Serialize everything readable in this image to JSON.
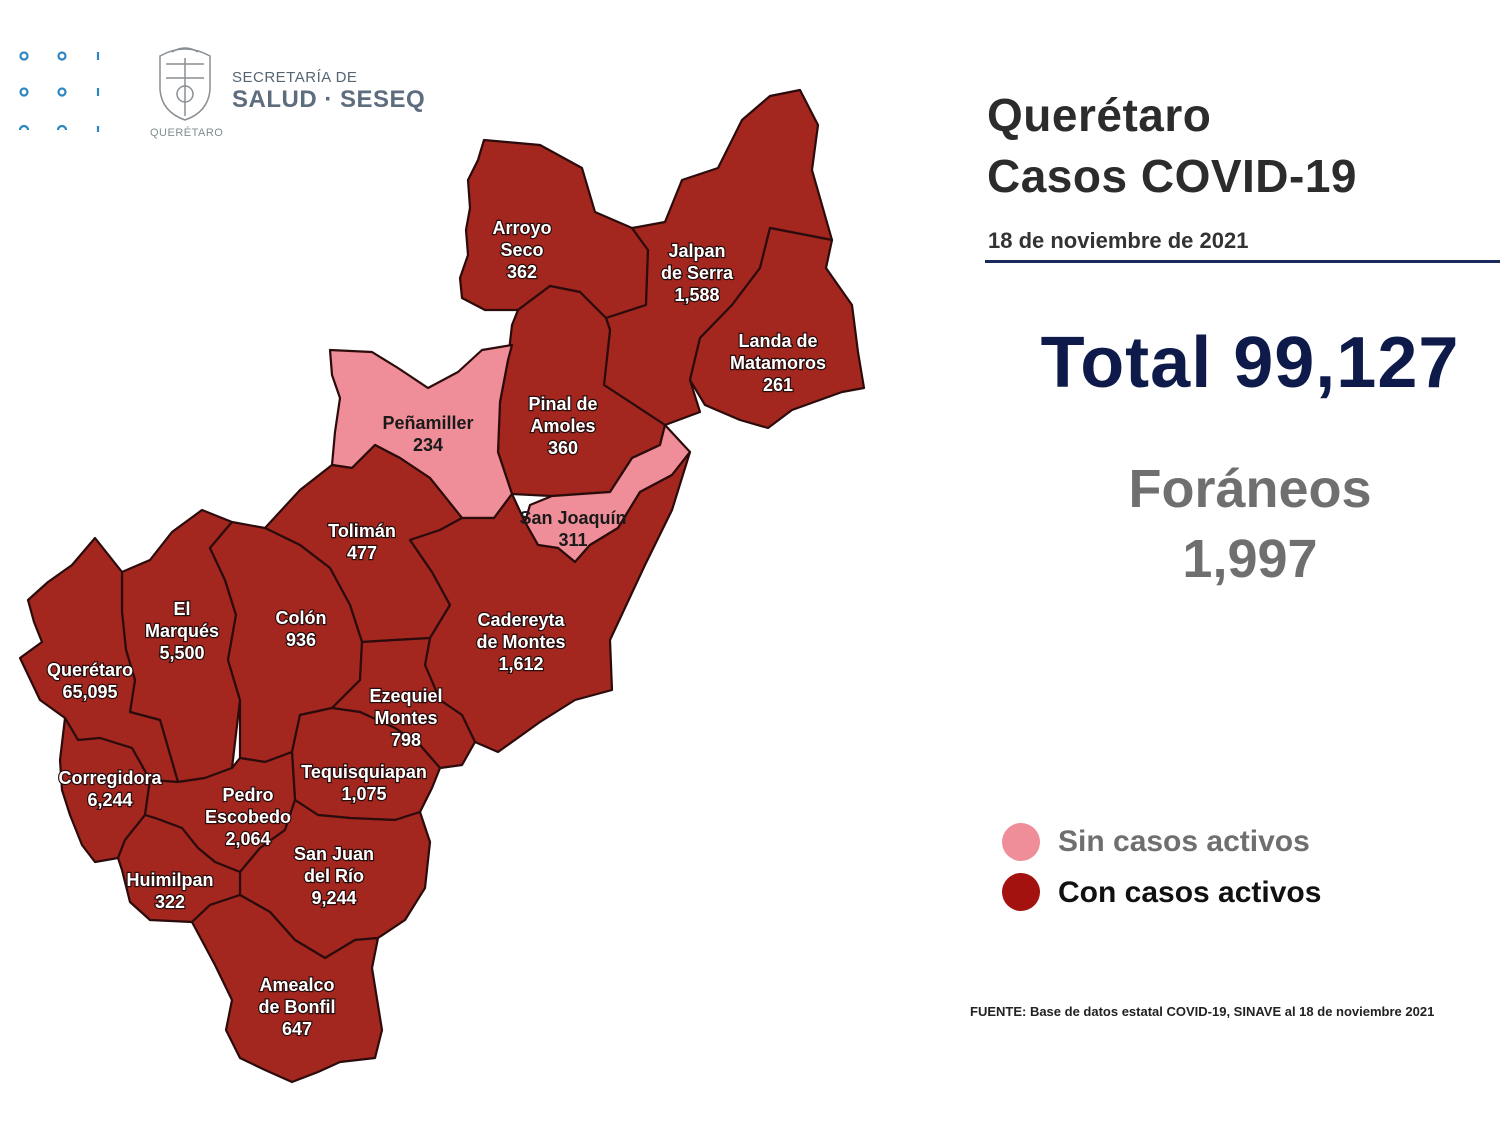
{
  "header": {
    "logo_line1": "SECRETARÍA DE",
    "logo_line2": "SALUD · SESEQ",
    "seal_caption": "QUERÉTARO"
  },
  "info": {
    "title_line1": "Querétaro",
    "title_line2": "Casos COVID-19",
    "date": "18 de noviembre de 2021",
    "total": "Total 99,127",
    "foraneos_label": "Foráneos",
    "foraneos_value": "1,997"
  },
  "legend": [
    {
      "label": "Sin casos activos",
      "color": "#ef8d98",
      "text_color": "#6f6f6f"
    },
    {
      "label": "Con casos activos",
      "color": "#a3120f",
      "text_color": "#111111"
    }
  ],
  "colors": {
    "active": "#a3271f",
    "no_active": "#ef8d98",
    "border": "#2b0b0b",
    "title_navy": "#0d1a4a"
  },
  "source": "FUENTE: Base de datos estatal COVID-19, SINAVE al 18 de noviembre 2021",
  "municipalities": [
    {
      "id": "arroyo-seco",
      "lines": [
        "Arroyo",
        "Seco",
        "362"
      ],
      "status": "active"
    },
    {
      "id": "jalpan-de-serra",
      "lines": [
        "Jalpan",
        "de Serra",
        "1,588"
      ],
      "status": "active"
    },
    {
      "id": "landa-de-matamoros",
      "lines": [
        "Landa de",
        "Matamoros",
        "261"
      ],
      "status": "active"
    },
    {
      "id": "pinal-de-amoles",
      "lines": [
        "Pinal de",
        "Amoles",
        "360"
      ],
      "status": "active"
    },
    {
      "id": "penamiller",
      "lines": [
        "Peñamiller",
        "234"
      ],
      "status": "none"
    },
    {
      "id": "san-joaquin",
      "lines": [
        "San Joaquín",
        "311"
      ],
      "status": "none"
    },
    {
      "id": "toliman",
      "lines": [
        "Tolimán",
        "477"
      ],
      "status": "active"
    },
    {
      "id": "cadereyta-de-montes",
      "lines": [
        "Cadereyta",
        "de Montes",
        "1,612"
      ],
      "status": "active"
    },
    {
      "id": "el-marques",
      "lines": [
        "El",
        "Marqués",
        "5,500"
      ],
      "status": "active"
    },
    {
      "id": "colon",
      "lines": [
        "Colón",
        "936"
      ],
      "status": "active"
    },
    {
      "id": "queretaro",
      "lines": [
        "Querétaro",
        "65,095"
      ],
      "status": "active"
    },
    {
      "id": "ezequiel-montes",
      "lines": [
        "Ezequiel",
        "Montes",
        "798"
      ],
      "status": "active"
    },
    {
      "id": "tequisquiapan",
      "lines": [
        "Tequisquiapan",
        "1,075"
      ],
      "status": "active"
    },
    {
      "id": "corregidora",
      "lines": [
        "Corregidora",
        "6,244"
      ],
      "status": "active"
    },
    {
      "id": "pedro-escobedo",
      "lines": [
        "Pedro",
        "Escobedo",
        "2,064"
      ],
      "status": "active"
    },
    {
      "id": "san-juan-del-rio",
      "lines": [
        "San Juan",
        "del Río",
        "9,244"
      ],
      "status": "active"
    },
    {
      "id": "huimilpan",
      "lines": [
        "Huimilpan",
        "322"
      ],
      "status": "active"
    },
    {
      "id": "amealco-de-bonfil",
      "lines": [
        "Amealco",
        "de Bonfil",
        "647"
      ],
      "status": "active"
    }
  ]
}
